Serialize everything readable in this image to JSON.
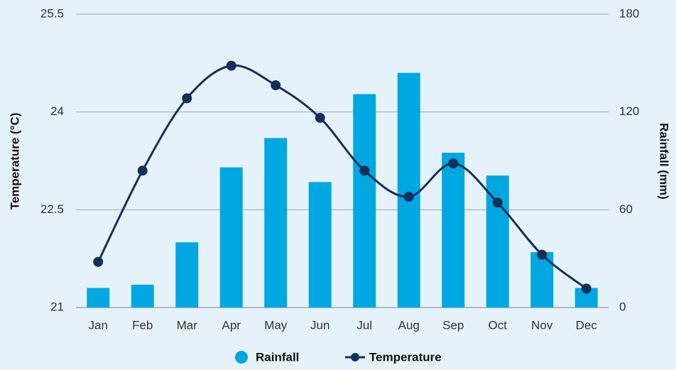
{
  "chart_data": {
    "type": "bar-line",
    "categories": [
      "Jan",
      "Feb",
      "Mar",
      "Apr",
      "May",
      "Jun",
      "Jul",
      "Aug",
      "Sep",
      "Oct",
      "Nov",
      "Dec"
    ],
    "y_label": "Temperature (°C)",
    "y2_label": "Rainfall (mm)",
    "ylim": [
      21,
      25.5
    ],
    "yticks": [
      21,
      22.5,
      24,
      25.5
    ],
    "y2lim": [
      0,
      180
    ],
    "y2ticks": [
      0,
      60,
      120,
      180
    ],
    "grid": true,
    "series": [
      {
        "name": "Rainfall",
        "type": "bar",
        "axis": "y2",
        "color": "#00a7e1",
        "values": [
          12,
          14,
          40,
          86,
          104,
          77,
          131,
          144,
          95,
          81,
          34,
          12
        ]
      },
      {
        "name": "Temperature",
        "type": "line",
        "axis": "y",
        "color": "#14305a",
        "values": [
          21.7,
          23.1,
          24.21,
          24.71,
          24.41,
          23.91,
          23.1,
          22.7,
          23.21,
          22.61,
          21.81,
          21.29
        ]
      }
    ]
  }
}
